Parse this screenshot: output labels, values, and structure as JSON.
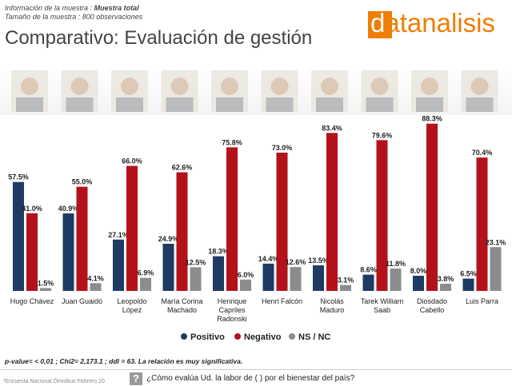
{
  "header": {
    "sample_info_label": "Información de la muestra :",
    "sample_info_value": "Muestra total",
    "sample_size": "Tamaño de la muestra : 800 observaciones",
    "logo": "datanalisis"
  },
  "chart_data": {
    "type": "bar",
    "title": "Comparativo: Evaluación de gestión",
    "categories": [
      "Hugo Chávez",
      "Juan Guaidó",
      "Leopoldo López",
      "María Corina Machado",
      "Henrique Capriles Radonski",
      "Henri Falcón",
      "Nicolás Maduro",
      "Tarek William Saab",
      "Diosdado Cabello",
      "Luis Parra"
    ],
    "series": [
      {
        "name": "Positivo",
        "color": "#1f3a63",
        "values": [
          57.5,
          40.9,
          27.1,
          24.9,
          18.3,
          14.4,
          13.5,
          8.6,
          8.0,
          6.5
        ],
        "value_labels": [
          "57.5%",
          "40.9%",
          "27.1%",
          "24.9%",
          "18.3%",
          "14.4%",
          "13.5%",
          "8.6%",
          "8.0%",
          "6.5%"
        ]
      },
      {
        "name": "Negativo",
        "color": "#b3121b",
        "values": [
          41.0,
          55.0,
          66.0,
          62.6,
          75.8,
          73.0,
          83.4,
          79.6,
          88.3,
          70.4
        ],
        "value_labels": [
          "41.0%",
          "55.0%",
          "66.0%",
          "62.6%",
          "75.8%",
          "73.0%",
          "83.4%",
          "79.6%",
          "88.3%",
          "70.4%"
        ]
      },
      {
        "name": "NS / NC",
        "color": "#8c8c8c",
        "values": [
          1.5,
          4.1,
          6.9,
          12.5,
          6.0,
          12.6,
          3.1,
          11.8,
          3.8,
          23.1
        ],
        "value_labels": [
          "1.5%",
          "4.1%",
          "6.9%",
          "12.5%",
          "6.0%",
          "12.6%",
          "3.1%",
          "11.8%",
          "3.8%",
          "23.1%"
        ]
      }
    ],
    "legend": "bottom"
  },
  "footnote": "p-value= < 0,01 ; Chi2= 2,173.1 ; ddl = 63. La relación es muy significativa.",
  "source": "¹Encuesta Nacional Ómnibus Febrero 20",
  "question": "¿Cómo evalúa Ud. la labor de (   ) por el bienestar del país?"
}
